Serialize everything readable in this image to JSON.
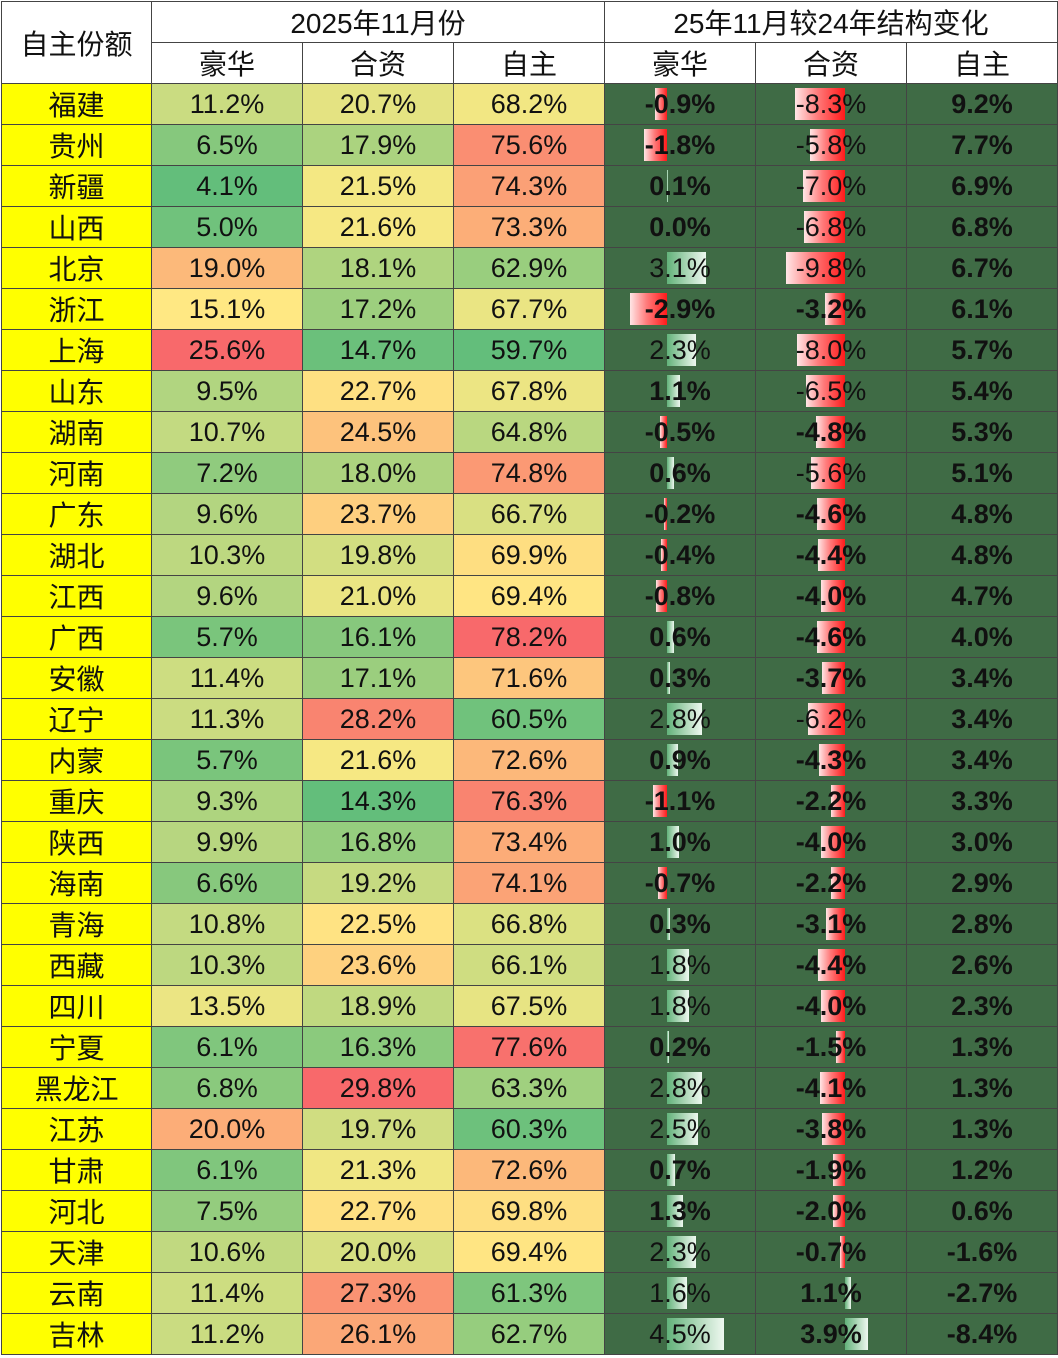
{
  "chart_data": {
    "type": "table",
    "corner_label": "自主份额",
    "group_headers": [
      "2025年11月份",
      "25年11月较24年结构变化"
    ],
    "columns": [
      "豪华",
      "合资",
      "自主",
      "豪华",
      "合资",
      "自主"
    ],
    "rows": [
      {
        "province": "福建",
        "share": [
          "11.2%",
          "20.7%",
          "68.2%"
        ],
        "change": [
          "-0.9%",
          "-8.3%",
          "9.2%"
        ]
      },
      {
        "province": "贵州",
        "share": [
          "6.5%",
          "17.9%",
          "75.6%"
        ],
        "change": [
          "-1.8%",
          "-5.8%",
          "7.7%"
        ]
      },
      {
        "province": "新疆",
        "share": [
          "4.1%",
          "21.5%",
          "74.3%"
        ],
        "change": [
          "0.1%",
          "-7.0%",
          "6.9%"
        ]
      },
      {
        "province": "山西",
        "share": [
          "5.0%",
          "21.6%",
          "73.3%"
        ],
        "change": [
          "0.0%",
          "-6.8%",
          "6.8%"
        ]
      },
      {
        "province": "北京",
        "share": [
          "19.0%",
          "18.1%",
          "62.9%"
        ],
        "change": [
          "3.1%",
          "-9.8%",
          "6.7%"
        ]
      },
      {
        "province": "浙江",
        "share": [
          "15.1%",
          "17.2%",
          "67.7%"
        ],
        "change": [
          "-2.9%",
          "-3.2%",
          "6.1%"
        ]
      },
      {
        "province": "上海",
        "share": [
          "25.6%",
          "14.7%",
          "59.7%"
        ],
        "change": [
          "2.3%",
          "-8.0%",
          "5.7%"
        ]
      },
      {
        "province": "山东",
        "share": [
          "9.5%",
          "22.7%",
          "67.8%"
        ],
        "change": [
          "1.1%",
          "-6.5%",
          "5.4%"
        ]
      },
      {
        "province": "湖南",
        "share": [
          "10.7%",
          "24.5%",
          "64.8%"
        ],
        "change": [
          "-0.5%",
          "-4.8%",
          "5.3%"
        ]
      },
      {
        "province": "河南",
        "share": [
          "7.2%",
          "18.0%",
          "74.8%"
        ],
        "change": [
          "0.6%",
          "-5.6%",
          "5.1%"
        ]
      },
      {
        "province": "广东",
        "share": [
          "9.6%",
          "23.7%",
          "66.7%"
        ],
        "change": [
          "-0.2%",
          "-4.6%",
          "4.8%"
        ]
      },
      {
        "province": "湖北",
        "share": [
          "10.3%",
          "19.8%",
          "69.9%"
        ],
        "change": [
          "-0.4%",
          "-4.4%",
          "4.8%"
        ]
      },
      {
        "province": "江西",
        "share": [
          "9.6%",
          "21.0%",
          "69.4%"
        ],
        "change": [
          "-0.8%",
          "-4.0%",
          "4.7%"
        ]
      },
      {
        "province": "广西",
        "share": [
          "5.7%",
          "16.1%",
          "78.2%"
        ],
        "change": [
          "0.6%",
          "-4.6%",
          "4.0%"
        ]
      },
      {
        "province": "安徽",
        "share": [
          "11.4%",
          "17.1%",
          "71.6%"
        ],
        "change": [
          "0.3%",
          "-3.7%",
          "3.4%"
        ]
      },
      {
        "province": "辽宁",
        "share": [
          "11.3%",
          "28.2%",
          "60.5%"
        ],
        "change": [
          "2.8%",
          "-6.2%",
          "3.4%"
        ]
      },
      {
        "province": "内蒙",
        "share": [
          "5.7%",
          "21.6%",
          "72.6%"
        ],
        "change": [
          "0.9%",
          "-4.3%",
          "3.4%"
        ]
      },
      {
        "province": "重庆",
        "share": [
          "9.3%",
          "14.3%",
          "76.3%"
        ],
        "change": [
          "-1.1%",
          "-2.2%",
          "3.3%"
        ]
      },
      {
        "province": "陕西",
        "share": [
          "9.9%",
          "16.8%",
          "73.4%"
        ],
        "change": [
          "1.0%",
          "-4.0%",
          "3.0%"
        ]
      },
      {
        "province": "海南",
        "share": [
          "6.6%",
          "19.2%",
          "74.1%"
        ],
        "change": [
          "-0.7%",
          "-2.2%",
          "2.9%"
        ]
      },
      {
        "province": "青海",
        "share": [
          "10.8%",
          "22.5%",
          "66.8%"
        ],
        "change": [
          "0.3%",
          "-3.1%",
          "2.8%"
        ]
      },
      {
        "province": "西藏",
        "share": [
          "10.3%",
          "23.6%",
          "66.1%"
        ],
        "change": [
          "1.8%",
          "-4.4%",
          "2.6%"
        ]
      },
      {
        "province": "四川",
        "share": [
          "13.5%",
          "18.9%",
          "67.5%"
        ],
        "change": [
          "1.8%",
          "-4.0%",
          "2.3%"
        ]
      },
      {
        "province": "宁夏",
        "share": [
          "6.1%",
          "16.3%",
          "77.6%"
        ],
        "change": [
          "0.2%",
          "-1.5%",
          "1.3%"
        ]
      },
      {
        "province": "黑龙江",
        "share": [
          "6.8%",
          "29.8%",
          "63.3%"
        ],
        "change": [
          "2.8%",
          "-4.1%",
          "1.3%"
        ]
      },
      {
        "province": "江苏",
        "share": [
          "20.0%",
          "19.7%",
          "60.3%"
        ],
        "change": [
          "2.5%",
          "-3.8%",
          "1.3%"
        ]
      },
      {
        "province": "甘肃",
        "share": [
          "6.1%",
          "21.3%",
          "72.6%"
        ],
        "change": [
          "0.7%",
          "-1.9%",
          "1.2%"
        ]
      },
      {
        "province": "河北",
        "share": [
          "7.5%",
          "22.7%",
          "69.8%"
        ],
        "change": [
          "1.3%",
          "-2.0%",
          "0.6%"
        ]
      },
      {
        "province": "天津",
        "share": [
          "10.6%",
          "20.0%",
          "69.4%"
        ],
        "change": [
          "2.3%",
          "-0.7%",
          "-1.6%"
        ]
      },
      {
        "province": "云南",
        "share": [
          "11.4%",
          "27.3%",
          "61.3%"
        ],
        "change": [
          "1.6%",
          "1.1%",
          "-2.7%"
        ]
      },
      {
        "province": "吉林",
        "share": [
          "11.2%",
          "26.1%",
          "62.7%"
        ],
        "change": [
          "4.5%",
          "3.9%",
          "-8.4%"
        ]
      }
    ]
  }
}
